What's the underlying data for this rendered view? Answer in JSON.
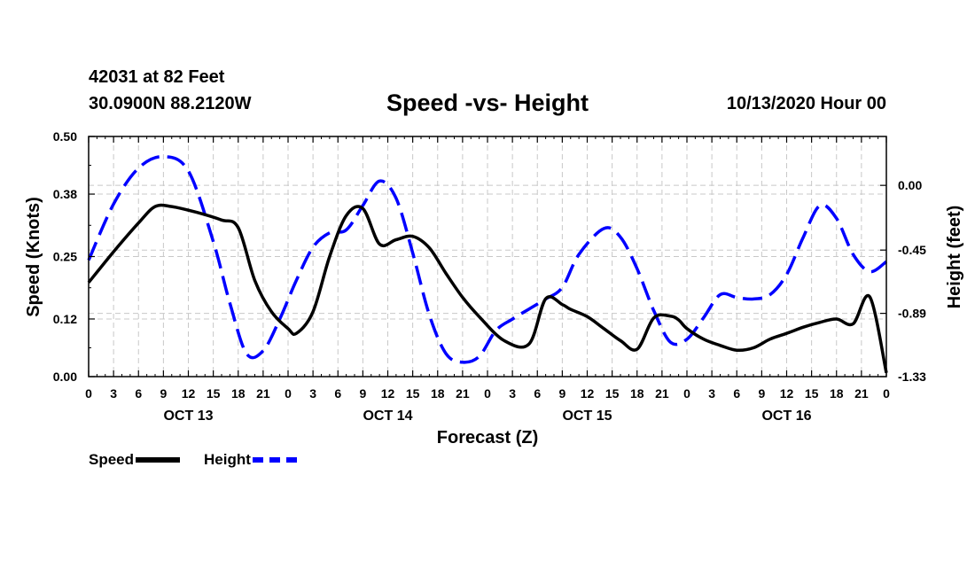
{
  "header": {
    "station": "42031 at 82 Feet",
    "coords": "30.0900N 88.2120W",
    "title": "Speed -vs- Height",
    "run": "10/13/2020 Hour 00"
  },
  "chart_data": {
    "type": "line",
    "title": "Speed -vs- Height",
    "xlabel": "Forecast (Z)",
    "ylabel_left": "Speed (Knots)",
    "ylabel_right": "Height (feet)",
    "x_unit": "forecast hour",
    "xlim": [
      0,
      96
    ],
    "x_tick_step": 3,
    "x_tick_labels": [
      "0",
      "3",
      "6",
      "9",
      "12",
      "15",
      "18",
      "21",
      "0",
      "3",
      "6",
      "9",
      "12",
      "15",
      "18",
      "21",
      "0",
      "3",
      "6",
      "9",
      "12",
      "15",
      "18",
      "21",
      "0",
      "3",
      "6",
      "9",
      "12",
      "15",
      "18",
      "21",
      "0"
    ],
    "day_labels": [
      {
        "label": "OCT 13",
        "hour": 12
      },
      {
        "label": "OCT 14",
        "hour": 36
      },
      {
        "label": "OCT 15",
        "hour": 60
      },
      {
        "label": "OCT 16",
        "hour": 84
      }
    ],
    "ylim_left": [
      0,
      0.5
    ],
    "y_ticks_left": [
      0.0,
      0.12,
      0.25,
      0.38,
      0.5
    ],
    "y_tick_labels_left": [
      "0.00",
      "0.12",
      "0.25",
      "0.38",
      "0.50"
    ],
    "ylim_right": [
      -1.33,
      0.34
    ],
    "y_ticks_right": [
      0.0,
      -0.45,
      -0.89,
      -1.33
    ],
    "y_tick_labels_right": [
      "0.00",
      "-0.45",
      "-0.89",
      "-1.33"
    ],
    "grid": true,
    "legend_position": "bottom-left",
    "series": [
      {
        "name": "Speed",
        "axis": "left",
        "color": "#000000",
        "dash": "solid",
        "x": [
          0,
          3,
          6,
          8,
          10,
          13,
          16,
          18,
          20,
          22,
          24,
          25,
          27,
          29,
          31,
          33,
          35,
          37,
          39,
          41,
          43,
          45,
          47,
          50,
          53,
          55,
          57,
          58,
          60,
          62,
          64,
          66,
          68,
          70,
          71,
          72,
          74,
          76,
          78,
          80,
          82,
          84,
          86,
          88,
          90,
          92,
          94,
          96
        ],
        "values": [
          0.196,
          0.26,
          0.32,
          0.354,
          0.354,
          0.342,
          0.326,
          0.31,
          0.2,
          0.135,
          0.1,
          0.09,
          0.135,
          0.25,
          0.335,
          0.35,
          0.276,
          0.285,
          0.292,
          0.268,
          0.215,
          0.165,
          0.125,
          0.075,
          0.068,
          0.162,
          0.15,
          0.14,
          0.125,
          0.1,
          0.075,
          0.057,
          0.122,
          0.126,
          0.118,
          0.1,
          0.078,
          0.065,
          0.055,
          0.06,
          0.078,
          0.09,
          0.103,
          0.113,
          0.12,
          0.11,
          0.166,
          0.008
        ]
      },
      {
        "name": "Height",
        "axis": "right",
        "color": "#0000ff",
        "dash": "dashed",
        "x": [
          0,
          3,
          6,
          9,
          12,
          15,
          17,
          19,
          21,
          23,
          25,
          27,
          29,
          31,
          33,
          35,
          37,
          39,
          41,
          43,
          45,
          47,
          49,
          51,
          53,
          55,
          57,
          59,
          62,
          64,
          66,
          68,
          70,
          72,
          74,
          76,
          78,
          80,
          82,
          84,
          86,
          88,
          90,
          92,
          94,
          96
        ],
        "values": [
          -0.52,
          -0.13,
          0.12,
          0.2,
          0.1,
          -0.39,
          -0.82,
          -1.17,
          -1.15,
          -0.93,
          -0.66,
          -0.43,
          -0.33,
          -0.31,
          -0.14,
          0.03,
          -0.09,
          -0.47,
          -0.9,
          -1.17,
          -1.23,
          -1.19,
          -1.01,
          -0.93,
          -0.86,
          -0.79,
          -0.71,
          -0.48,
          -0.3,
          -0.36,
          -0.58,
          -0.87,
          -1.09,
          -1.07,
          -0.92,
          -0.76,
          -0.78,
          -0.79,
          -0.76,
          -0.62,
          -0.36,
          -0.14,
          -0.23,
          -0.48,
          -0.6,
          -0.53
        ]
      }
    ]
  }
}
